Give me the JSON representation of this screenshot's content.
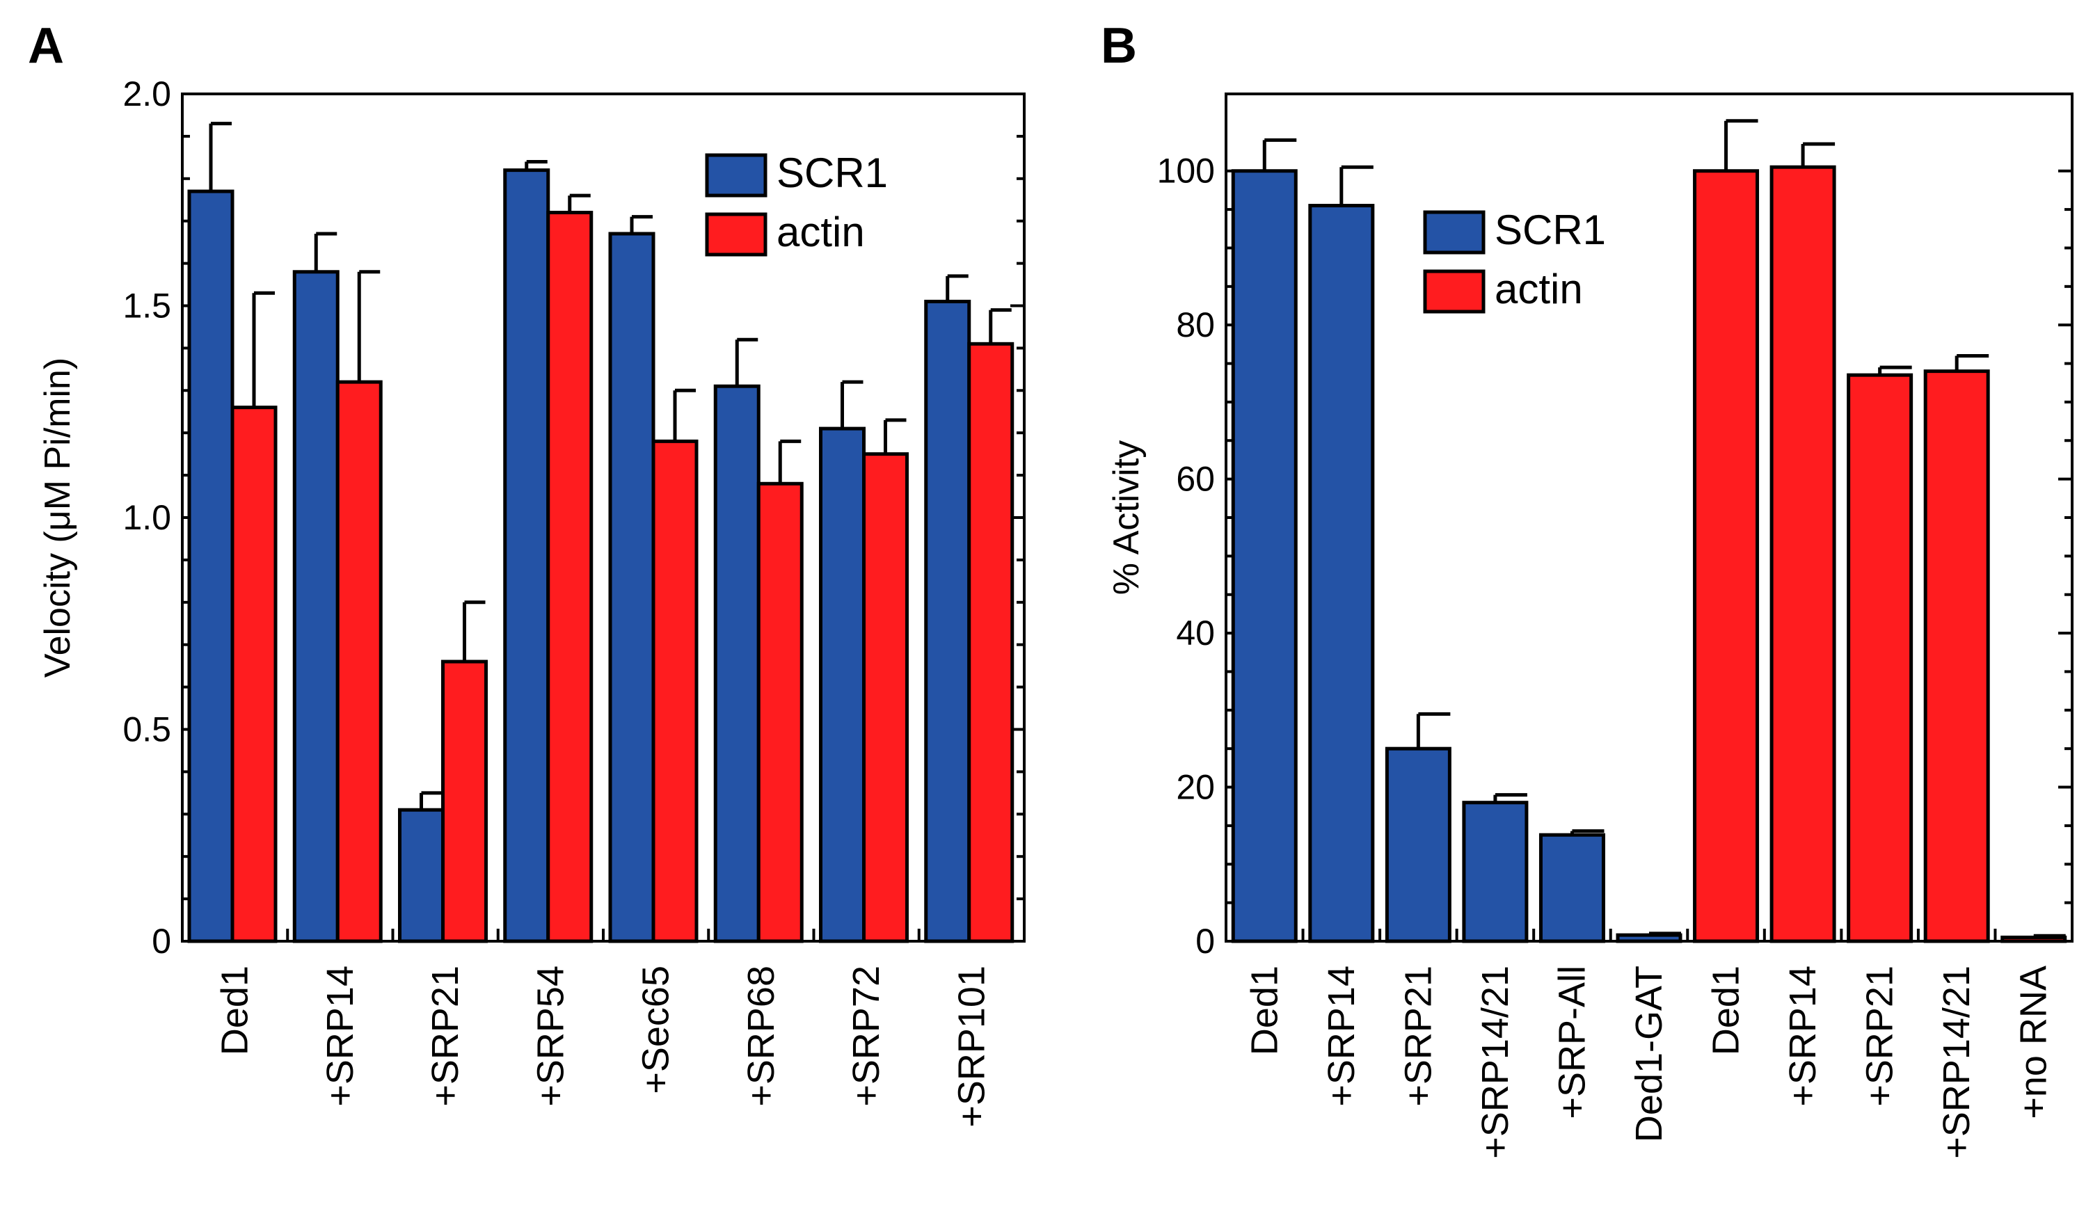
{
  "colors": {
    "scr1": "#2453a6",
    "actin": "#ff1c1f"
  },
  "chart_data": [
    {
      "id": "A",
      "panel_label": "A",
      "type": "bar",
      "ylabel": "Velocity (μM Pi/min)",
      "ylim": [
        0,
        2.0
      ],
      "yticks": [
        0,
        0.5,
        1.0,
        1.5,
        2.0
      ],
      "ytick_labels": [
        "0",
        "0.5",
        "1.0",
        "1.5",
        "2.0"
      ],
      "categories": [
        "Ded1",
        "+SRP14",
        "+SRP21",
        "+SRP54",
        "+Sec65",
        "+SRP68",
        "+SRP72",
        "+SRP101"
      ],
      "legend": {
        "position": "top-right",
        "entries": [
          "SCR1",
          "actin"
        ]
      },
      "series": [
        {
          "name": "SCR1",
          "color": "#2453a6",
          "values": [
            1.77,
            1.58,
            0.31,
            1.82,
            1.67,
            1.31,
            1.21,
            1.51
          ],
          "errors": [
            0.16,
            0.09,
            0.04,
            0.02,
            0.04,
            0.11,
            0.11,
            0.06
          ]
        },
        {
          "name": "actin",
          "color": "#ff1c1f",
          "values": [
            1.26,
            1.32,
            0.66,
            1.72,
            1.18,
            1.08,
            1.15,
            1.41
          ],
          "errors": [
            0.27,
            0.26,
            0.14,
            0.04,
            0.12,
            0.1,
            0.08,
            0.08
          ]
        }
      ]
    },
    {
      "id": "B",
      "panel_label": "B",
      "type": "bar",
      "ylabel": "% Activity",
      "ylim": [
        0,
        110
      ],
      "yticks": [
        0,
        20,
        40,
        60,
        80,
        100
      ],
      "ytick_labels": [
        "0",
        "20",
        "40",
        "60",
        "80",
        "100"
      ],
      "legend": {
        "position": "top-center",
        "entries": [
          "SCR1",
          "actin"
        ]
      },
      "bars": [
        {
          "label": "Ded1",
          "series": "SCR1",
          "value": 100,
          "error": 4
        },
        {
          "label": "+SRP14",
          "series": "SCR1",
          "value": 95.5,
          "error": 5
        },
        {
          "label": "+SRP21",
          "series": "SCR1",
          "value": 25,
          "error": 4.5
        },
        {
          "label": "+SRP14/21",
          "series": "SCR1",
          "value": 18,
          "error": 1
        },
        {
          "label": "+SRP-All",
          "series": "SCR1",
          "value": 13.8,
          "error": 0.5
        },
        {
          "label": "Ded1-GAT",
          "series": "SCR1",
          "value": 0.8,
          "error": 0.2
        },
        {
          "label": "Ded1",
          "series": "actin",
          "value": 100,
          "error": 6.5
        },
        {
          "label": "+SRP14",
          "series": "actin",
          "value": 100.5,
          "error": 3
        },
        {
          "label": "+SRP21",
          "series": "actin",
          "value": 73.5,
          "error": 1
        },
        {
          "label": "+SRP14/21",
          "series": "actin",
          "value": 74,
          "error": 2
        },
        {
          "label": "+no RNA",
          "series": "actin",
          "value": 0.5,
          "error": 0.2
        }
      ]
    }
  ]
}
